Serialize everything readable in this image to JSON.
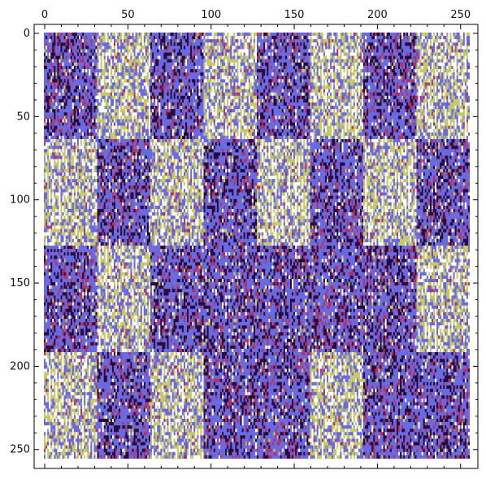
{
  "chart_data": {
    "type": "heatmap",
    "subtype": "matrix-plot",
    "title": "",
    "xlabel": "",
    "ylabel": "",
    "xlim": [
      0,
      256
    ],
    "ylim": [
      0,
      256
    ],
    "y_axis_inverted": true,
    "x_axis_position": "top",
    "x_ticks": [
      0,
      50,
      100,
      150,
      200,
      250
    ],
    "x_tick_labels": [
      "0",
      "50",
      "100",
      "150",
      "200",
      "250"
    ],
    "y_ticks": [
      0,
      50,
      100,
      150,
      200,
      250
    ],
    "y_tick_labels": [
      "0",
      "50",
      "100",
      "150",
      "200",
      "250"
    ],
    "grid": false,
    "legend": "none",
    "colors": {
      "dark": "#2a0a3a",
      "crimson": "#b0306a",
      "blue": "#6a6ae0",
      "light": "#c8c868",
      "white": "#ffffff"
    },
    "blocks": {
      "description": "8x8 grid of 32x32 blocks; 1 = dark/blue dominant block, 0 = yellow/light dominant block",
      "block_size": 32,
      "pattern": [
        [
          1,
          0,
          1,
          0,
          1,
          0,
          1,
          0
        ],
        [
          1,
          0,
          1,
          0,
          1,
          0,
          1,
          0
        ],
        [
          0,
          1,
          0,
          1,
          0,
          1,
          0,
          1
        ],
        [
          0,
          1,
          0,
          1,
          0,
          1,
          0,
          1
        ],
        [
          1,
          0,
          1,
          1,
          1,
          1,
          1,
          0
        ],
        [
          1,
          0,
          1,
          1,
          1,
          1,
          1,
          0
        ],
        [
          0,
          1,
          0,
          1,
          1,
          0,
          1,
          1
        ],
        [
          0,
          1,
          0,
          1,
          1,
          0,
          1,
          1
        ]
      ]
    }
  }
}
